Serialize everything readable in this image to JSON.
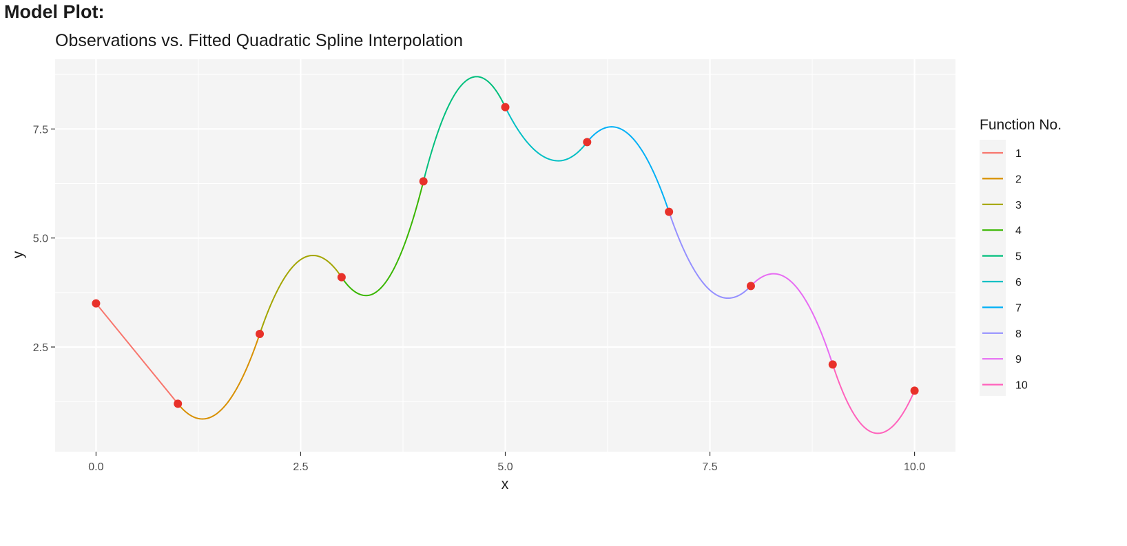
{
  "heading": "Model Plot:",
  "chart_data": {
    "type": "line",
    "title": "Observations vs. Fitted Quadratic Spline Interpolation",
    "xlabel": "x",
    "ylabel": "y",
    "xlim": [
      -0.5,
      10.5
    ],
    "ylim": [
      0.1,
      9.1
    ],
    "x_ticks": [
      0,
      2.5,
      5,
      7.5,
      10
    ],
    "x_tick_labels": [
      "0.0",
      "2.5",
      "5.0",
      "7.5",
      "10.0"
    ],
    "y_ticks": [
      2.5,
      5,
      7.5
    ],
    "y_tick_labels": [
      "2.5",
      "5.0",
      "7.5"
    ],
    "grid": true,
    "legend": {
      "title": "Function No.",
      "placement": "right"
    },
    "observations": {
      "color": "#e8312a",
      "x": [
        0,
        1,
        2,
        3,
        4,
        5,
        6,
        7,
        8,
        9,
        10
      ],
      "y": [
        3.5,
        1.2,
        2.8,
        4.1,
        6.3,
        8.0,
        7.2,
        5.6,
        3.9,
        2.1,
        1.5
      ]
    },
    "series": [
      {
        "name": "1",
        "color": "#F8766D",
        "x": [
          0,
          1
        ],
        "y": [
          3.5,
          1.2
        ]
      },
      {
        "name": "2",
        "color": "#D89000",
        "x": [
          1,
          1.3,
          2
        ],
        "y": [
          1.2,
          0.85,
          2.8
        ]
      },
      {
        "name": "3",
        "color": "#A3A500",
        "x": [
          2,
          2.65,
          3
        ],
        "y": [
          2.8,
          4.6,
          4.1
        ]
      },
      {
        "name": "4",
        "color": "#39B600",
        "x": [
          3,
          3.3,
          4
        ],
        "y": [
          4.1,
          3.68,
          6.3
        ]
      },
      {
        "name": "5",
        "color": "#00BF7D",
        "x": [
          4,
          4.65,
          5
        ],
        "y": [
          6.3,
          8.7,
          8.0
        ]
      },
      {
        "name": "6",
        "color": "#00BFC4",
        "x": [
          5,
          5.65,
          6
        ],
        "y": [
          8.0,
          6.77,
          7.2
        ]
      },
      {
        "name": "7",
        "color": "#00B0F6",
        "x": [
          6,
          6.3,
          7
        ],
        "y": [
          7.2,
          7.55,
          5.6
        ]
      },
      {
        "name": "8",
        "color": "#9590FF",
        "x": [
          7,
          7.72,
          8
        ],
        "y": [
          5.6,
          3.62,
          3.9
        ]
      },
      {
        "name": "9",
        "color": "#E76BF3",
        "x": [
          8,
          8.28,
          9
        ],
        "y": [
          3.9,
          4.18,
          2.1
        ]
      },
      {
        "name": "10",
        "color": "#FF62BC",
        "x": [
          9,
          9.55,
          10
        ],
        "y": [
          2.1,
          0.52,
          1.5
        ]
      }
    ]
  }
}
